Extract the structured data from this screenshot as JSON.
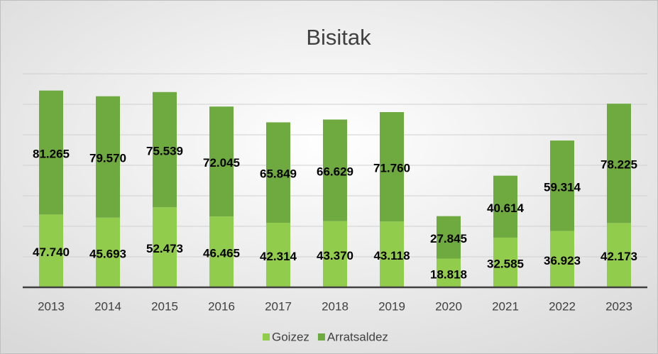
{
  "chart_data": {
    "type": "bar",
    "stacked": true,
    "title": "Bisitak",
    "categories": [
      "2013",
      "2014",
      "2015",
      "2016",
      "2017",
      "2018",
      "2019",
      "2020",
      "2021",
      "2022",
      "2023"
    ],
    "series": [
      {
        "name": "Goizez",
        "color": "#92cc4c",
        "values": [
          47740,
          45693,
          52473,
          46465,
          42314,
          43370,
          43118,
          18818,
          32585,
          36923,
          42173
        ],
        "value_labels": [
          "47.740",
          "45.693",
          "52.473",
          "46.465",
          "42.314",
          "43.370",
          "43.118",
          "18.818",
          "32.585",
          "36.923",
          "42.173"
        ]
      },
      {
        "name": "Arratsaldez",
        "color": "#6faa40",
        "values": [
          81265,
          79570,
          75539,
          72045,
          65849,
          66629,
          71760,
          27845,
          40614,
          59314,
          78225
        ],
        "value_labels": [
          "81.265",
          "79.570",
          "75.539",
          "72.045",
          "65.849",
          "66.629",
          "71.760",
          "27.845",
          "40.614",
          "59.314",
          "78.225"
        ]
      }
    ],
    "ylim": [
      0,
      140000
    ],
    "yticks": [
      0,
      20000,
      40000,
      60000,
      80000,
      100000,
      120000,
      140000
    ],
    "grid": true,
    "legend": "bottom"
  }
}
